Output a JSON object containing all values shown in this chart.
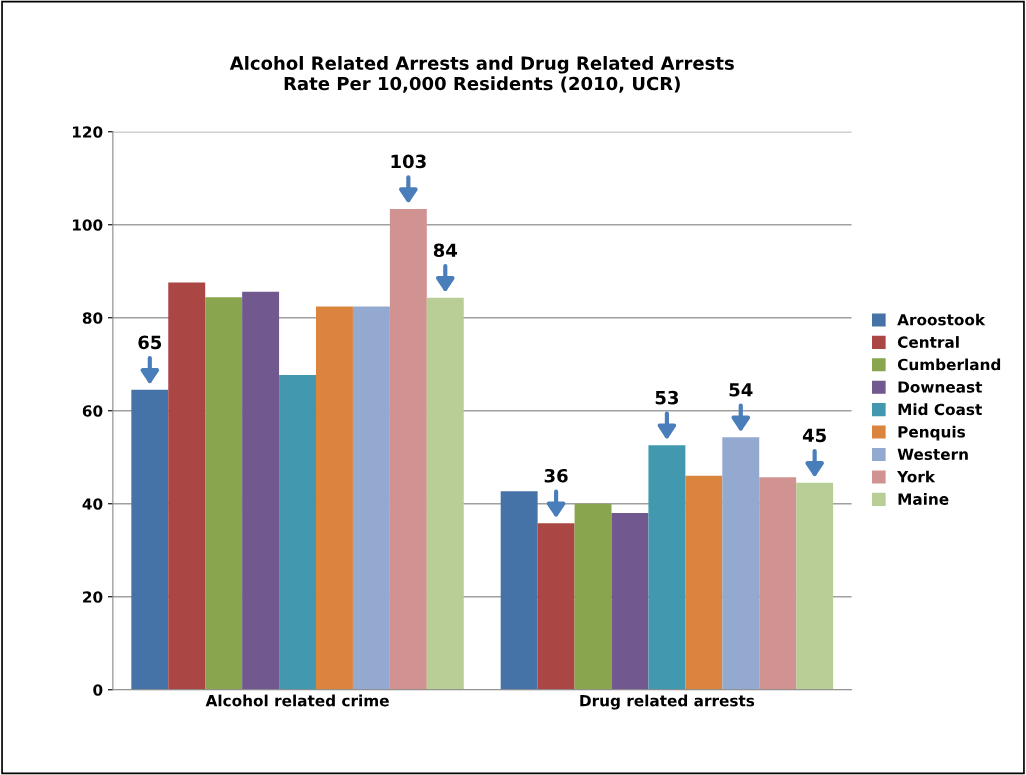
{
  "chart_data": {
    "type": "bar",
    "title": "Alcohol Related Arrests and Drug Related Arrests\nRate Per 10,000 Residents (2010, UCR)",
    "categories": [
      "Alcohol related crime",
      "Drug related arrests"
    ],
    "series": [
      {
        "name": "Aroostook",
        "color": "#4572a7",
        "values": [
          64.5,
          42.7
        ],
        "value_labels": [
          "65",
          null
        ]
      },
      {
        "name": "Central",
        "color": "#aa4643",
        "values": [
          87.6,
          35.8
        ],
        "value_labels": [
          null,
          "36"
        ]
      },
      {
        "name": "Cumberland",
        "color": "#89a54e",
        "values": [
          84.4,
          40
        ],
        "value_labels": [
          null,
          null
        ]
      },
      {
        "name": "Downeast",
        "color": "#71588f",
        "values": [
          85.6,
          38
        ],
        "value_labels": [
          null,
          null
        ]
      },
      {
        "name": "Mid Coast",
        "color": "#4198af",
        "values": [
          67.7,
          52.6
        ],
        "value_labels": [
          null,
          "53"
        ]
      },
      {
        "name": "Penquis",
        "color": "#db843d",
        "values": [
          82.4,
          46
        ],
        "value_labels": [
          null,
          null
        ]
      },
      {
        "name": "Western",
        "color": "#93a9cf",
        "values": [
          82.4,
          54.3
        ],
        "value_labels": [
          null,
          "54"
        ]
      },
      {
        "name": "York",
        "color": "#d19392",
        "values": [
          103.4,
          45.7
        ],
        "value_labels": [
          "103",
          null
        ]
      },
      {
        "name": "Maine",
        "color": "#b9cd96",
        "values": [
          84.3,
          44.5
        ],
        "value_labels": [
          "84",
          "45"
        ]
      }
    ],
    "ylim": [
      0,
      120
    ],
    "yticks": [
      0,
      20,
      40,
      60,
      80,
      100,
      120
    ],
    "grid": "y",
    "legend": "right"
  }
}
